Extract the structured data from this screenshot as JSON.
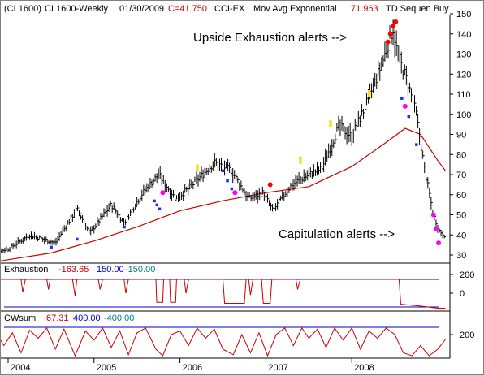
{
  "header": {
    "symbol": "(CL1600)",
    "series_label": "CL1600-Weekly",
    "date": "01/30/2009",
    "close_label": "C=41.750",
    "study1": "CCI-EX",
    "study2": "Mov Avg Exponential",
    "study2_value": "71.963",
    "study3": "TD Sequen Buy"
  },
  "annotations": {
    "upside": "Upside Exhaustion alerts -->",
    "capitulation": "Capitulation alerts -->"
  },
  "panels": {
    "exhaustion": {
      "title": "Exhaustion",
      "value": "-163.65",
      "upper": "150.00",
      "lower": "-150.00"
    },
    "cwsum": {
      "title": "CWsum",
      "value": "67.31",
      "upper": "400.00",
      "lower": "-400.00"
    }
  },
  "colors": {
    "bars": "#000000",
    "ema": "#cc0000",
    "osc": "#cc0000",
    "bands": "#0000cc",
    "header_value": "#cc0000",
    "header_upper": "#0000cc",
    "header_lower": "#008080",
    "dot_blue": "#1030ff",
    "dot_yellow": "#f0e020",
    "dot_magenta": "#ff00ff",
    "dot_red": "#ff0000"
  },
  "chart_data": [
    {
      "type": "ohlc",
      "title": "CL1600-Weekly",
      "x_labels": [
        "2004",
        "2005",
        "2006",
        "2007",
        "2008"
      ],
      "ylim": [
        25,
        150
      ],
      "y_ticks": [
        30,
        40,
        50,
        60,
        70,
        80,
        90,
        100,
        110,
        120,
        130,
        140,
        150
      ],
      "price_path": [
        {
          "t": 2003.75,
          "v": 31
        },
        {
          "t": 2004.0,
          "v": 33
        },
        {
          "t": 2004.25,
          "v": 40
        },
        {
          "t": 2004.55,
          "v": 36
        },
        {
          "t": 2004.8,
          "v": 53
        },
        {
          "t": 2004.95,
          "v": 41
        },
        {
          "t": 2005.2,
          "v": 55
        },
        {
          "t": 2005.35,
          "v": 46
        },
        {
          "t": 2005.55,
          "v": 60
        },
        {
          "t": 2005.75,
          "v": 70
        },
        {
          "t": 2005.95,
          "v": 58
        },
        {
          "t": 2006.1,
          "v": 63
        },
        {
          "t": 2006.4,
          "v": 76
        },
        {
          "t": 2006.6,
          "v": 72
        },
        {
          "t": 2006.8,
          "v": 58
        },
        {
          "t": 2006.97,
          "v": 61
        },
        {
          "t": 2007.08,
          "v": 52
        },
        {
          "t": 2007.3,
          "v": 65
        },
        {
          "t": 2007.5,
          "v": 70
        },
        {
          "t": 2007.65,
          "v": 73
        },
        {
          "t": 2007.85,
          "v": 94
        },
        {
          "t": 2008.0,
          "v": 89
        },
        {
          "t": 2008.2,
          "v": 108
        },
        {
          "t": 2008.35,
          "v": 125
        },
        {
          "t": 2008.48,
          "v": 143
        },
        {
          "t": 2008.53,
          "v": 130
        },
        {
          "t": 2008.65,
          "v": 116
        },
        {
          "t": 2008.75,
          "v": 100
        },
        {
          "t": 2008.85,
          "v": 72
        },
        {
          "t": 2008.95,
          "v": 50
        },
        {
          "t": 2009.02,
          "v": 42
        },
        {
          "t": 2009.08,
          "v": 40
        }
      ],
      "ema": [
        {
          "t": 2003.75,
          "v": 26
        },
        {
          "t": 2004.5,
          "v": 31
        },
        {
          "t": 2005.0,
          "v": 37
        },
        {
          "t": 2005.5,
          "v": 44
        },
        {
          "t": 2006.0,
          "v": 52
        },
        {
          "t": 2006.5,
          "v": 57
        },
        {
          "t": 2007.0,
          "v": 61
        },
        {
          "t": 2007.5,
          "v": 64
        },
        {
          "t": 2008.0,
          "v": 74
        },
        {
          "t": 2008.4,
          "v": 86
        },
        {
          "t": 2008.62,
          "v": 93
        },
        {
          "t": 2008.8,
          "v": 90
        },
        {
          "t": 2009.0,
          "v": 77
        },
        {
          "t": 2009.09,
          "v": 72
        }
      ],
      "signals": [
        {
          "t": 2004.5,
          "v": 34,
          "color": "blue"
        },
        {
          "t": 2004.8,
          "v": 38,
          "color": "blue"
        },
        {
          "t": 2005.35,
          "v": 44,
          "color": "blue"
        },
        {
          "t": 2005.7,
          "v": 57,
          "color": "blue"
        },
        {
          "t": 2005.73,
          "v": 55,
          "color": "blue"
        },
        {
          "t": 2005.76,
          "v": 53,
          "color": "blue"
        },
        {
          "t": 2005.8,
          "v": 61,
          "color": "magenta"
        },
        {
          "t": 2006.2,
          "v": 73,
          "color": "yellow"
        },
        {
          "t": 2006.5,
          "v": 72,
          "color": "blue"
        },
        {
          "t": 2006.55,
          "v": 67,
          "color": "blue"
        },
        {
          "t": 2006.6,
          "v": 63,
          "color": "blue"
        },
        {
          "t": 2006.64,
          "v": 61,
          "color": "magenta"
        },
        {
          "t": 2007.05,
          "v": 65,
          "color": "red"
        },
        {
          "t": 2007.4,
          "v": 77,
          "color": "yellow"
        },
        {
          "t": 2007.75,
          "v": 95,
          "color": "yellow"
        },
        {
          "t": 2008.2,
          "v": 110,
          "color": "yellow"
        },
        {
          "t": 2008.42,
          "v": 136,
          "color": "red"
        },
        {
          "t": 2008.45,
          "v": 140,
          "color": "red"
        },
        {
          "t": 2008.48,
          "v": 144,
          "color": "red"
        },
        {
          "t": 2008.51,
          "v": 146,
          "color": "red"
        },
        {
          "t": 2008.58,
          "v": 108,
          "color": "blue"
        },
        {
          "t": 2008.62,
          "v": 104,
          "color": "magenta"
        },
        {
          "t": 2008.66,
          "v": 99,
          "color": "blue"
        },
        {
          "t": 2008.75,
          "v": 85,
          "color": "blue"
        },
        {
          "t": 2008.95,
          "v": 50,
          "color": "magenta"
        },
        {
          "t": 2008.98,
          "v": 43,
          "color": "magenta"
        },
        {
          "t": 2009.01,
          "v": 36,
          "color": "magenta"
        }
      ]
    },
    {
      "type": "line",
      "title": "Exhaustion",
      "ylim": [
        -170,
        200
      ],
      "y_ticks": [
        200,
        0
      ],
      "bands": [
        150,
        -150
      ],
      "series": [
        {
          "t": 2003.75,
          "v": 150
        },
        {
          "t": 2004.15,
          "v": 150
        },
        {
          "t": 2004.17,
          "v": 10
        },
        {
          "t": 2004.2,
          "v": 150
        },
        {
          "t": 2004.45,
          "v": 150
        },
        {
          "t": 2004.47,
          "v": 40
        },
        {
          "t": 2004.49,
          "v": 150
        },
        {
          "t": 2004.75,
          "v": 150
        },
        {
          "t": 2004.78,
          "v": -30
        },
        {
          "t": 2004.8,
          "v": 150
        },
        {
          "t": 2005.05,
          "v": 150
        },
        {
          "t": 2005.07,
          "v": 40
        },
        {
          "t": 2005.1,
          "v": 150
        },
        {
          "t": 2005.35,
          "v": 150
        },
        {
          "t": 2005.37,
          "v": 0
        },
        {
          "t": 2005.4,
          "v": 150
        },
        {
          "t": 2005.72,
          "v": 150
        },
        {
          "t": 2005.73,
          "v": -100
        },
        {
          "t": 2005.8,
          "v": -100
        },
        {
          "t": 2005.81,
          "v": 150
        },
        {
          "t": 2005.88,
          "v": 150
        },
        {
          "t": 2005.89,
          "v": -100
        },
        {
          "t": 2005.95,
          "v": -100
        },
        {
          "t": 2005.96,
          "v": 150
        },
        {
          "t": 2006.05,
          "v": 150
        },
        {
          "t": 2006.07,
          "v": 0
        },
        {
          "t": 2006.1,
          "v": 150
        },
        {
          "t": 2006.5,
          "v": 150
        },
        {
          "t": 2006.52,
          "v": -110
        },
        {
          "t": 2006.75,
          "v": -110
        },
        {
          "t": 2006.77,
          "v": 150
        },
        {
          "t": 2006.8,
          "v": 150
        },
        {
          "t": 2006.82,
          "v": -20
        },
        {
          "t": 2006.85,
          "v": 150
        },
        {
          "t": 2006.95,
          "v": 150
        },
        {
          "t": 2006.97,
          "v": -110
        },
        {
          "t": 2007.05,
          "v": -110
        },
        {
          "t": 2007.07,
          "v": 150
        },
        {
          "t": 2007.35,
          "v": 150
        },
        {
          "t": 2007.37,
          "v": 40
        },
        {
          "t": 2007.4,
          "v": 150
        },
        {
          "t": 2008.55,
          "v": 150
        },
        {
          "t": 2008.57,
          "v": -120
        },
        {
          "t": 2008.8,
          "v": -140
        },
        {
          "t": 2009.0,
          "v": -163
        },
        {
          "t": 2009.09,
          "v": -163
        }
      ]
    },
    {
      "type": "line",
      "title": "CWsum",
      "ylim": [
        -400,
        400
      ],
      "y_ticks": [
        200
      ],
      "bands": [
        400,
        -400
      ],
      "series": [
        {
          "t": 2003.75,
          "v": 0
        },
        {
          "t": 2003.85,
          "v": 300
        },
        {
          "t": 2003.95,
          "v": -100
        },
        {
          "t": 2004.05,
          "v": 250
        },
        {
          "t": 2004.15,
          "v": -300
        },
        {
          "t": 2004.25,
          "v": 320
        },
        {
          "t": 2004.35,
          "v": 100
        },
        {
          "t": 2004.45,
          "v": 380
        },
        {
          "t": 2004.55,
          "v": -200
        },
        {
          "t": 2004.65,
          "v": 350
        },
        {
          "t": 2004.78,
          "v": -380
        },
        {
          "t": 2004.9,
          "v": 300
        },
        {
          "t": 2005.0,
          "v": 50
        },
        {
          "t": 2005.1,
          "v": 380
        },
        {
          "t": 2005.2,
          "v": -150
        },
        {
          "t": 2005.3,
          "v": 300
        },
        {
          "t": 2005.4,
          "v": -350
        },
        {
          "t": 2005.5,
          "v": 250
        },
        {
          "t": 2005.6,
          "v": 380
        },
        {
          "t": 2005.72,
          "v": -200
        },
        {
          "t": 2005.8,
          "v": -380
        },
        {
          "t": 2005.9,
          "v": 200
        },
        {
          "t": 2006.0,
          "v": 300
        },
        {
          "t": 2006.1,
          "v": -100
        },
        {
          "t": 2006.2,
          "v": 380
        },
        {
          "t": 2006.3,
          "v": 100
        },
        {
          "t": 2006.4,
          "v": 350
        },
        {
          "t": 2006.5,
          "v": -200
        },
        {
          "t": 2006.62,
          "v": -350
        },
        {
          "t": 2006.72,
          "v": 200
        },
        {
          "t": 2006.82,
          "v": -300
        },
        {
          "t": 2006.92,
          "v": 250
        },
        {
          "t": 2007.02,
          "v": -380
        },
        {
          "t": 2007.12,
          "v": 200
        },
        {
          "t": 2007.22,
          "v": 380
        },
        {
          "t": 2007.32,
          "v": -100
        },
        {
          "t": 2007.42,
          "v": 380
        },
        {
          "t": 2007.5,
          "v": 100
        },
        {
          "t": 2007.6,
          "v": 350
        },
        {
          "t": 2007.7,
          "v": -150
        },
        {
          "t": 2007.8,
          "v": 380
        },
        {
          "t": 2007.9,
          "v": 50
        },
        {
          "t": 2008.0,
          "v": 380
        },
        {
          "t": 2008.1,
          "v": -200
        },
        {
          "t": 2008.2,
          "v": 300
        },
        {
          "t": 2008.3,
          "v": 100
        },
        {
          "t": 2008.4,
          "v": 380
        },
        {
          "t": 2008.5,
          "v": 200
        },
        {
          "t": 2008.6,
          "v": -300
        },
        {
          "t": 2008.7,
          "v": -380
        },
        {
          "t": 2008.8,
          "v": -100
        },
        {
          "t": 2008.9,
          "v": -380
        },
        {
          "t": 2009.0,
          "v": -200
        },
        {
          "t": 2009.09,
          "v": 67
        }
      ]
    }
  ]
}
